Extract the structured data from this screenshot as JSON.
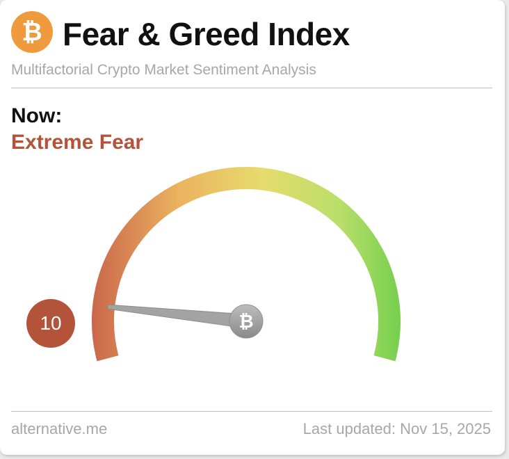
{
  "header": {
    "logo_icon": "bitcoin-icon",
    "logo_glyph": "₿",
    "title": "Fear & Greed Index",
    "subtitle": "Multifactorial Crypto Market Sentiment Analysis"
  },
  "current": {
    "label": "Now:",
    "classification": "Extreme Fear",
    "value": "10",
    "value_number": 10,
    "scale_max": 100
  },
  "colors": {
    "fear": "#b2533a",
    "neutral": "#e8de6a",
    "greed": "#6fcf4a",
    "accent_orange": "#f09a3e",
    "needle": "#9e9e9e"
  },
  "gauge": {
    "hub_icon": "bitcoin-icon",
    "hub_glyph": "₿"
  },
  "footer": {
    "source": "alternative.me",
    "last_updated": "Last updated: Nov 15, 2025"
  }
}
